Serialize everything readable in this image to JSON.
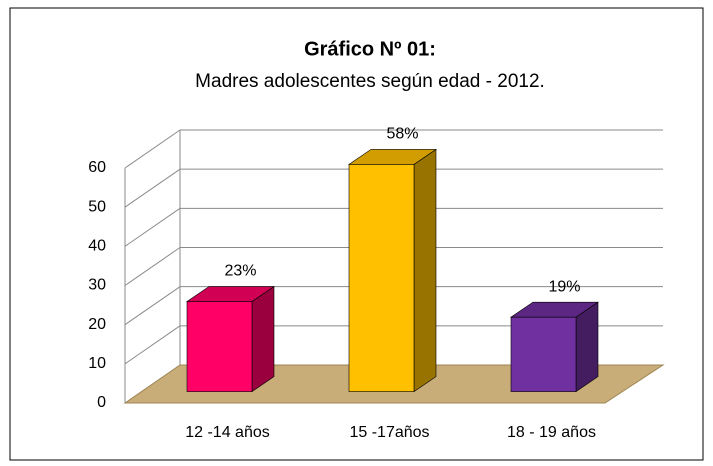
{
  "chart_data": {
    "type": "bar3d",
    "title": "Gráfico Nº 01:",
    "subtitle": "Madres adolescentes según edad - 2012.",
    "categories": [
      "12 -14 años",
      "15 -17años",
      "18 - 19 años"
    ],
    "values": [
      23,
      58,
      19
    ],
    "value_labels": [
      "23%",
      "58%",
      "19%"
    ],
    "colors": [
      "#ff0066",
      "#ffc000",
      "#7030a0"
    ],
    "ylim": [
      0,
      60
    ],
    "yticks": [
      0,
      10,
      20,
      30,
      40,
      50,
      60
    ],
    "grid": true
  }
}
